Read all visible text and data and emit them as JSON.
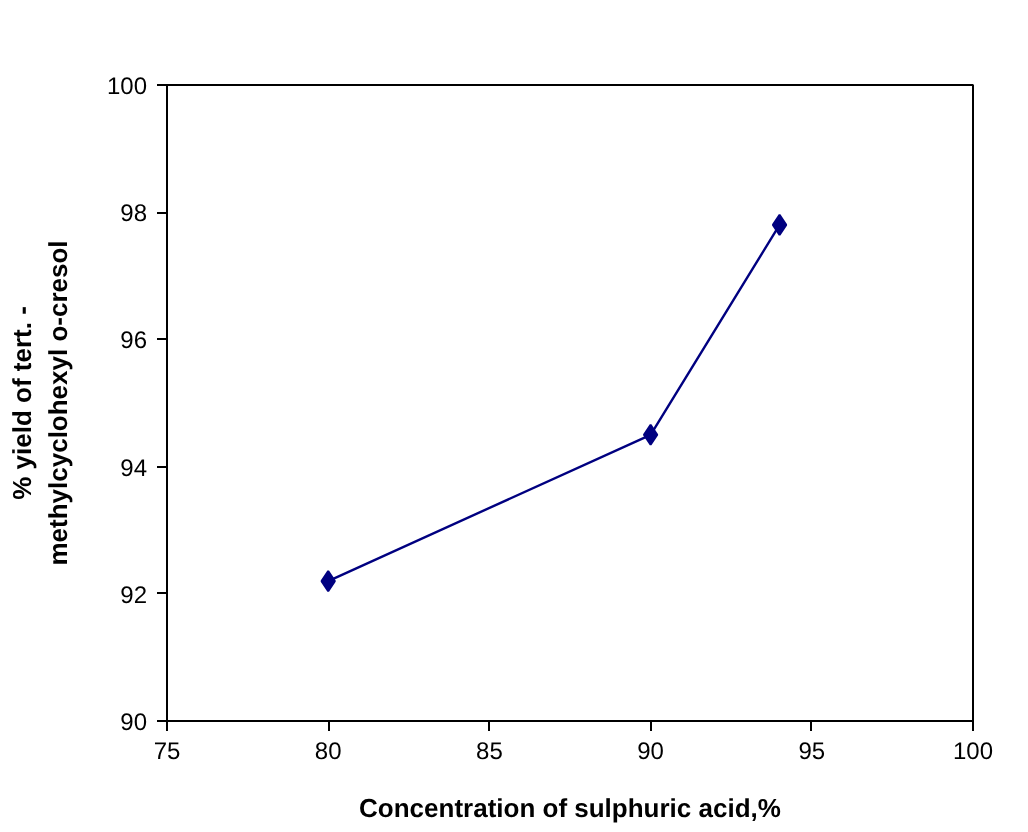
{
  "chart_data": {
    "type": "line",
    "xlabel": "Concentration of sulphuric acid,%",
    "ylabel": "% yield of tert. -\nmethylcyclohexyl o-cresol",
    "x": [
      80,
      90,
      94
    ],
    "series": [
      {
        "color": "#000080",
        "values": [
          92.2,
          94.5,
          97.8
        ]
      }
    ],
    "xlim": [
      75,
      100
    ],
    "xticks": [
      75,
      80,
      85,
      90,
      95,
      100
    ],
    "ylim": [
      90,
      100
    ],
    "yticks": [
      90,
      92,
      94,
      96,
      98,
      100
    ],
    "marker": "diamond",
    "grid": false
  }
}
